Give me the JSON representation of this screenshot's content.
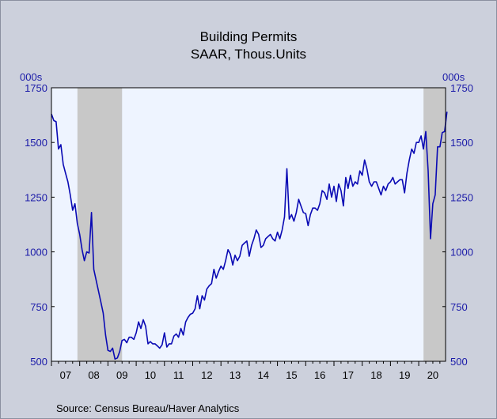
{
  "chart_data": {
    "type": "line",
    "title": "Building Permits",
    "subtitle": "SAAR, Thous.Units",
    "left_unit_label": "000s",
    "right_unit_label": "000s",
    "source": "Source:  Census Bureau/Haver Analytics",
    "ylim": [
      500,
      1750
    ],
    "yticks": [
      500,
      750,
      1000,
      1250,
      1500,
      1750
    ],
    "x_categories": [
      "07",
      "08",
      "09",
      "10",
      "11",
      "12",
      "13",
      "14",
      "15",
      "16",
      "17",
      "18",
      "19",
      "20"
    ],
    "x_start_year": 2007,
    "x_end_year": 2020.95,
    "recessions": [
      [
        2007.92,
        2009.5
      ],
      [
        2020.17,
        2020.95
      ]
    ],
    "grid": false,
    "series": [
      {
        "color": "#0a0ab4",
        "x_start": 2007.0,
        "x_step": 0.0833333,
        "values": [
          1630,
          1600,
          1595,
          1470,
          1490,
          1400,
          1360,
          1320,
          1260,
          1190,
          1220,
          1130,
          1080,
          1010,
          960,
          1000,
          995,
          1180,
          920,
          870,
          820,
          770,
          720,
          620,
          550,
          545,
          560,
          510,
          515,
          545,
          595,
          600,
          585,
          610,
          610,
          600,
          630,
          680,
          650,
          690,
          660,
          580,
          590,
          580,
          580,
          570,
          560,
          575,
          630,
          565,
          580,
          580,
          615,
          625,
          610,
          650,
          620,
          680,
          700,
          715,
          720,
          740,
          800,
          740,
          800,
          780,
          830,
          845,
          855,
          920,
          880,
          910,
          935,
          920,
          960,
          1010,
          990,
          940,
          985,
          960,
          980,
          1030,
          1040,
          1050,
          980,
          1030,
          1060,
          1100,
          1080,
          1020,
          1030,
          1060,
          1070,
          1080,
          1060,
          1050,
          1090,
          1060,
          1100,
          1160,
          1380,
          1150,
          1170,
          1140,
          1180,
          1240,
          1210,
          1180,
          1175,
          1120,
          1170,
          1200,
          1200,
          1190,
          1220,
          1280,
          1270,
          1240,
          1310,
          1250,
          1300,
          1230,
          1310,
          1280,
          1210,
          1340,
          1290,
          1350,
          1300,
          1320,
          1310,
          1370,
          1350,
          1420,
          1380,
          1320,
          1300,
          1320,
          1320,
          1290,
          1260,
          1300,
          1280,
          1310,
          1320,
          1340,
          1310,
          1320,
          1330,
          1330,
          1270,
          1360,
          1420,
          1470,
          1450,
          1500,
          1500,
          1530,
          1470,
          1550,
          1370,
          1060,
          1220,
          1260,
          1480,
          1480,
          1545,
          1550,
          1640
        ]
      }
    ]
  }
}
